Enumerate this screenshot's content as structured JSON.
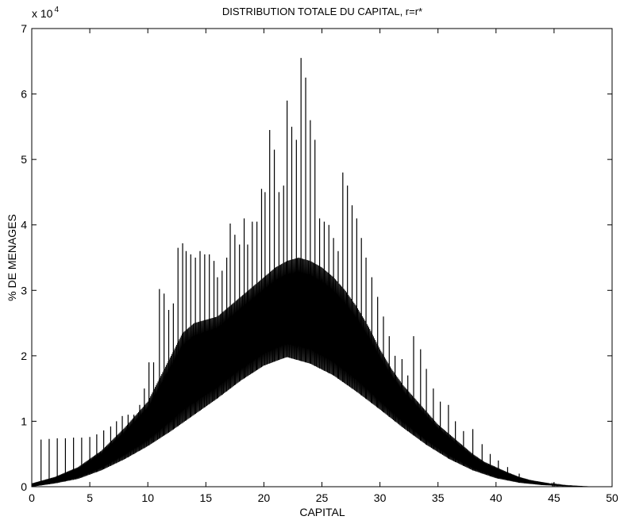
{
  "chart_data": {
    "type": "line",
    "title": "DISTRIBUTION TOTALE DU CAPITAL, r=r*",
    "xlabel": "CAPITAL",
    "ylabel": "% DE MENAGES",
    "y_multiplier_base": "x 10",
    "y_multiplier_exponent": "4",
    "xlim": [
      0,
      50
    ],
    "ylim": [
      0,
      7
    ],
    "x_ticks": [
      "0",
      "5",
      "10",
      "15",
      "20",
      "25",
      "30",
      "35",
      "40",
      "45",
      "50"
    ],
    "y_ticks": [
      "0",
      "1",
      "2",
      "3",
      "4",
      "5",
      "6",
      "7"
    ],
    "grid": false,
    "legend": "none",
    "color": "#000000",
    "lower_envelope": {
      "x": [
        0,
        2,
        4,
        6,
        8,
        10,
        12,
        14,
        16,
        18,
        20,
        21.5,
        22,
        24,
        26,
        28,
        30,
        32,
        34,
        36,
        38,
        40,
        42,
        44,
        46,
        48,
        50
      ],
      "y": [
        0.0,
        0.05,
        0.12,
        0.25,
        0.42,
        0.62,
        0.85,
        1.1,
        1.35,
        1.62,
        1.85,
        1.95,
        1.98,
        1.88,
        1.7,
        1.45,
        1.18,
        0.9,
        0.64,
        0.42,
        0.25,
        0.13,
        0.06,
        0.025,
        0.01,
        0.0,
        0.0
      ]
    },
    "upper_envelope": {
      "x": [
        0,
        2,
        4,
        6,
        8,
        10,
        11,
        12,
        13,
        14,
        15,
        16,
        17,
        18,
        19,
        20,
        21,
        22,
        23,
        24,
        25,
        26,
        27,
        28,
        29,
        30,
        31,
        32,
        33,
        34,
        35,
        36,
        37,
        38,
        39,
        40,
        41,
        42,
        43,
        44,
        45,
        46,
        47,
        48,
        50
      ],
      "y": [
        0.05,
        0.15,
        0.3,
        0.55,
        0.9,
        1.3,
        1.65,
        2.0,
        2.35,
        2.5,
        2.55,
        2.6,
        2.75,
        2.9,
        3.05,
        3.2,
        3.35,
        3.45,
        3.5,
        3.45,
        3.35,
        3.2,
        3.0,
        2.75,
        2.45,
        2.1,
        1.8,
        1.55,
        1.35,
        1.15,
        0.95,
        0.8,
        0.65,
        0.5,
        0.38,
        0.3,
        0.22,
        0.15,
        0.1,
        0.07,
        0.04,
        0.02,
        0.01,
        0.0,
        0.0
      ]
    },
    "spikes": {
      "x": [
        0.8,
        1.5,
        2.2,
        2.9,
        3.6,
        4.3,
        5.0,
        5.6,
        6.2,
        6.8,
        7.3,
        7.8,
        8.3,
        8.8,
        9.3,
        9.7,
        10.1,
        10.5,
        11.0,
        11.4,
        11.8,
        12.2,
        12.6,
        13.0,
        13.3,
        13.7,
        14.1,
        14.5,
        14.9,
        15.3,
        15.7,
        16.0,
        16.4,
        16.8,
        17.1,
        17.5,
        17.9,
        18.3,
        18.6,
        19.0,
        19.4,
        19.8,
        20.1,
        20.5,
        20.9,
        21.3,
        21.7,
        22.0,
        22.4,
        22.8,
        23.2,
        23.6,
        24.0,
        24.4,
        24.8,
        25.2,
        25.6,
        26.0,
        26.4,
        26.8,
        27.2,
        27.6,
        28.0,
        28.4,
        28.8,
        29.3,
        29.8,
        30.3,
        30.8,
        31.3,
        31.9,
        32.4,
        32.9,
        33.5,
        34.0,
        34.6,
        35.2,
        35.9,
        36.5,
        37.2,
        38.0,
        38.8,
        39.5,
        40.2,
        41.0,
        42.0,
        43.0
      ],
      "y": [
        0.72,
        0.73,
        0.74,
        0.74,
        0.75,
        0.75,
        0.76,
        0.8,
        0.86,
        0.92,
        1.0,
        1.08,
        1.1,
        1.1,
        1.25,
        1.5,
        1.9,
        1.9,
        3.02,
        2.95,
        2.7,
        2.8,
        3.65,
        3.72,
        3.6,
        3.55,
        3.5,
        3.6,
        3.55,
        3.55,
        3.45,
        3.2,
        3.3,
        3.5,
        4.02,
        3.85,
        3.7,
        4.1,
        3.7,
        4.05,
        4.05,
        4.55,
        4.5,
        5.45,
        5.15,
        4.5,
        4.6,
        5.9,
        5.5,
        5.3,
        6.55,
        6.25,
        5.6,
        5.3,
        4.1,
        4.05,
        4.0,
        3.8,
        3.6,
        4.8,
        4.6,
        4.3,
        4.1,
        3.8,
        3.5,
        3.2,
        2.9,
        2.6,
        2.3,
        2.0,
        1.95,
        1.7,
        2.3,
        2.1,
        1.8,
        1.5,
        1.3,
        1.25,
        1.0,
        0.85,
        0.88,
        0.65,
        0.5,
        0.4,
        0.3,
        0.2,
        0.1
      ]
    }
  }
}
